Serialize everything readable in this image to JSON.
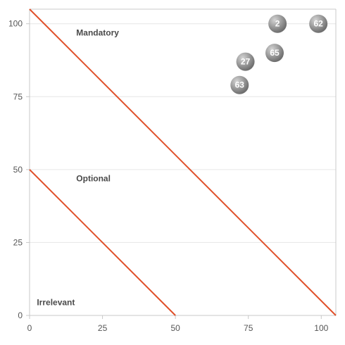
{
  "chart_data": {
    "type": "scatter",
    "title": "",
    "xlabel": "",
    "ylabel": "",
    "xlim": [
      0,
      105
    ],
    "ylim": [
      0,
      105
    ],
    "x_ticks": [
      0,
      25,
      50,
      75,
      100
    ],
    "y_ticks": [
      0,
      25,
      50,
      75,
      100
    ],
    "x_tick_labels": [
      "0",
      "25",
      "50",
      "75",
      "100"
    ],
    "y_tick_labels": [
      "0",
      "25",
      "50",
      "75",
      "100"
    ],
    "grid": "horizontal",
    "colors": {
      "line": "#e0502a",
      "bubble_light": "#d4d4d4",
      "bubble_dark": "#6e6e6e"
    },
    "reference_lines": [
      {
        "x": [
          0,
          105
        ],
        "y": [
          105,
          0
        ]
      },
      {
        "x": [
          0,
          50
        ],
        "y": [
          50,
          0
        ]
      }
    ],
    "zone_labels": [
      {
        "text": "Mandatory",
        "x": 16,
        "y": 96
      },
      {
        "text": "Optional",
        "x": 16,
        "y": 46
      },
      {
        "text": "Irrelevant",
        "x": 2.5,
        "y": 3.5
      }
    ],
    "points": [
      {
        "label": "2",
        "x": 85,
        "y": 100
      },
      {
        "label": "62",
        "x": 99,
        "y": 100
      },
      {
        "label": "65",
        "x": 84,
        "y": 90
      },
      {
        "label": "27",
        "x": 74,
        "y": 87
      },
      {
        "label": "63",
        "x": 72,
        "y": 79
      }
    ]
  }
}
